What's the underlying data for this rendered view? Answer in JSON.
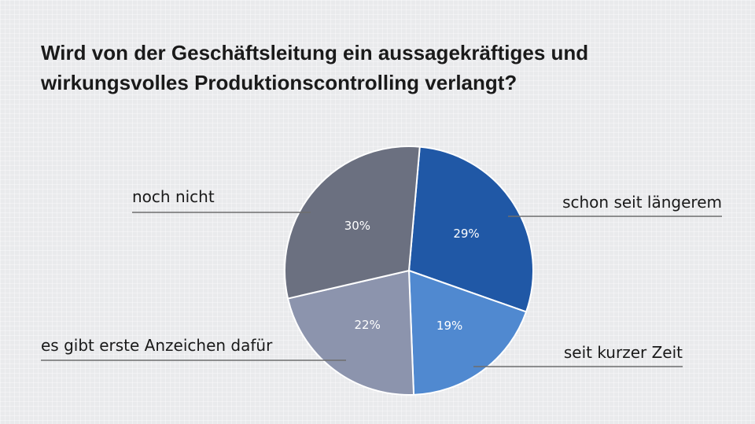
{
  "chart_data": {
    "type": "pie",
    "title_lines": [
      "Wird von der Geschäftsleitung ein aussagekräftiges und",
      "wirkungsvolles Produktionscontrolling verlangt?"
    ],
    "slices": [
      {
        "label": "schon seit längerem",
        "value": 29,
        "value_label": "29%",
        "color": "#2058a6"
      },
      {
        "label": "seit kurzer Zeit",
        "value": 19,
        "value_label": "19%",
        "color": "#5089d0"
      },
      {
        "label": "es gibt erste Anzeichen dafür",
        "value": 22,
        "value_label": "22%",
        "color": "#8c94ad"
      },
      {
        "label": "noch nicht",
        "value": 30,
        "value_label": "30%",
        "color": "#6b7080"
      }
    ],
    "legend": "none",
    "grid": false
  },
  "colors": {
    "leader_line": "#6e6e6e",
    "label_text": "#1a1a1a",
    "value_text": "#ffffff"
  }
}
